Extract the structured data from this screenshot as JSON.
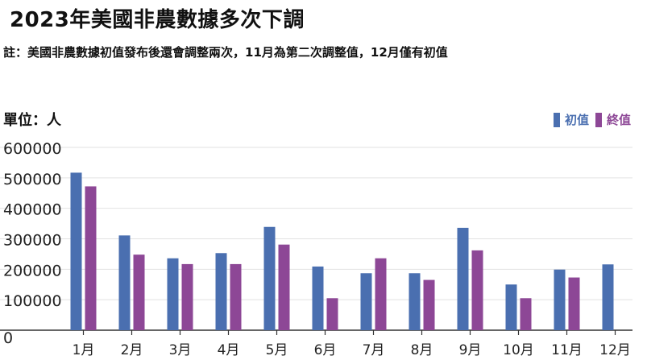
{
  "header": {
    "title": "2023年美國非農數據多次下調",
    "note": "註：美國非農數據初值發布後還會調整兩次，11月為第二次調整值，12月僅有初值",
    "unit": "單位：人"
  },
  "colors": {
    "initial": "#4a6fb0",
    "final": "#8d4796",
    "grid": "#e2e2e2",
    "axis": "#333333",
    "text": "#222222"
  },
  "chart_data": {
    "type": "bar",
    "categories": [
      "1月",
      "2月",
      "3月",
      "4月",
      "5月",
      "6月",
      "7月",
      "8月",
      "9月",
      "10月",
      "11月",
      "12月"
    ],
    "series": [
      {
        "name": "初值",
        "values": [
          517000,
          311000,
          236000,
          253000,
          339000,
          209000,
          187000,
          187000,
          336000,
          150000,
          199000,
          216000
        ]
      },
      {
        "name": "終值",
        "values": [
          472000,
          248000,
          217000,
          217000,
          281000,
          105000,
          236000,
          165000,
          262000,
          105000,
          173000,
          null
        ]
      }
    ],
    "y_ticks": [
      "0",
      "100000",
      "200000",
      "300000",
      "400000",
      "500000",
      "600000"
    ],
    "ylim": [
      0,
      600000
    ],
    "legend_position": "top-right",
    "grid": true
  }
}
